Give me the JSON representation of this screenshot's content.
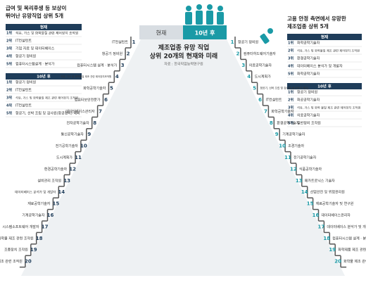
{
  "header": {
    "tab_now": "현재",
    "tab_future": "10년 후",
    "title_line1": "제조업종 유망 직업",
    "title_line2": "상위 20개의 현재와 미래",
    "source": "자료 : 한국직업능력연구원"
  },
  "left_box": {
    "title_line1": "급여 및 복리후생 등 보상이",
    "title_line2": "뛰어난 유망직업 상위 5개",
    "now": {
      "label": "현재",
      "items": [
        {
          "rank": "1위",
          "name": "석유, 가스 및 화학물질 관련 제어장치 조작원"
        },
        {
          "rank": "2위",
          "name": "IT컨설턴트"
        },
        {
          "rank": "3위",
          "name": "기업 자료 및 데이터베이스"
        },
        {
          "rank": "4위",
          "name": "항공기 정비원"
        },
        {
          "rank": "5위",
          "name": "컴퓨터시스템설계 · 분석가"
        }
      ]
    },
    "future": {
      "label": "10년 후",
      "items": [
        {
          "rank": "1위",
          "name": "항공기 정비원"
        },
        {
          "rank": "2위",
          "name": "IT컨설턴트"
        },
        {
          "rank": "3위",
          "name": "석유, 가스 및 화학물질 제조 관련 제어장치 조작원"
        },
        {
          "rank": "4위",
          "name": "IT컨설턴트"
        },
        {
          "rank": "5위",
          "name": "항공기, 선박 조립 및 검사원(항공정비) 제외"
        }
      ]
    }
  },
  "right_box": {
    "title_line1": "고용 안정 측면에서 유망한",
    "title_line2": "제조업종 상위 5개",
    "now": {
      "label": "현재",
      "items": [
        {
          "rank": "1위",
          "name": "화학공학기술자"
        },
        {
          "rank": "2위",
          "name": "석유, 가스 및 화학물질 제조 관련 제어장치 조작원"
        },
        {
          "rank": "3위",
          "name": "환경공학기술자"
        },
        {
          "rank": "4위",
          "name": "데이터베이스 분석가 및 개발자"
        },
        {
          "rank": "5위",
          "name": "화학공학기술자"
        }
      ]
    },
    "future": {
      "label": "10년 후",
      "items": [
        {
          "rank": "1위",
          "name": "항공기 정비원"
        },
        {
          "rank": "2위",
          "name": "화공공학기술자"
        },
        {
          "rank": "3위",
          "name": "석유, 가스 및 화학 물질 제조 관련 제어장치 조작원"
        },
        {
          "rank": "4위",
          "name": "의료공학기술자"
        },
        {
          "rank": "5위",
          "name": "일반정비 조작원"
        }
      ]
    }
  },
  "stairs_now": [
    {
      "rank": "1",
      "name": "IT컨설턴트"
    },
    {
      "rank": "2",
      "name": "항공기 정비원"
    },
    {
      "rank": "3",
      "name": "컴퓨터시스템 설계 · 분석가"
    },
    {
      "rank": "4",
      "name": "석유, 가스 및 화학물질 제조 관련 제어장치조작원"
    },
    {
      "rank": "5",
      "name": "화학공학기술자"
    },
    {
      "rank": "6",
      "name": "컴퓨터보안전문가"
    },
    {
      "rank": "7",
      "name": "데이터베이스관리자"
    },
    {
      "rank": "8",
      "name": "전자공학기술자"
    },
    {
      "rank": "9",
      "name": "통신공학기술자"
    },
    {
      "rank": "10",
      "name": "전기공학기술자"
    },
    {
      "rank": "11",
      "name": "도시계획가"
    },
    {
      "rank": "12",
      "name": "환경공학기술자"
    },
    {
      "rank": "13",
      "name": "설비관리 조작원"
    },
    {
      "rank": "14",
      "name": "데이터베이스 분석가 및 개발자"
    },
    {
      "rank": "15",
      "name": "재료공학기술자"
    },
    {
      "rank": "16",
      "name": "기계공학기술자"
    },
    {
      "rank": "17",
      "name": "시스템소프트웨어 개발자"
    },
    {
      "rank": "18",
      "name": "화학물 제조 관련 조작원"
    },
    {
      "rank": "19",
      "name": "조종장치 조작원"
    },
    {
      "rank": "20",
      "name": "화학제품 제조 관련 조작원"
    }
  ],
  "stairs_future": [
    {
      "rank": "1",
      "name": "항공기 정비원"
    },
    {
      "rank": "2",
      "name": "컴퓨터하드웨어기술자"
    },
    {
      "rank": "3",
      "name": "의료공학기술자"
    },
    {
      "rank": "4",
      "name": "도시계획가"
    },
    {
      "rank": "5",
      "name": "항공기, 선박 조립 및 검사원(항공정비 제외)"
    },
    {
      "rank": "6",
      "name": "IT컨설턴트"
    },
    {
      "rank": "7",
      "name": "화학공학기술자"
    },
    {
      "rank": "8",
      "name": "환경공학기술자"
    },
    {
      "rank": "9",
      "name": "기계공학기술자"
    },
    {
      "rank": "10",
      "name": "조경기술자"
    },
    {
      "rank": "11",
      "name": "전기공학기술자"
    },
    {
      "rank": "12",
      "name": "식품공학기술자"
    },
    {
      "rank": "13",
      "name": "메카트로닉스 기술자"
    },
    {
      "rank": "14",
      "name": "산업안전 및 위험관리원"
    },
    {
      "rank": "15",
      "name": "재료공학기술자 및 연구원"
    },
    {
      "rank": "16",
      "name": "데이터베이스관리자"
    },
    {
      "rank": "17",
      "name": "데이터베이스 분석가 및 개발자"
    },
    {
      "rank": "18",
      "name": "컴퓨터시스템 설계 · 분석가"
    },
    {
      "rank": "19",
      "name": "화학제품 제조 관련 조작원"
    },
    {
      "rank": "20",
      "name": "화학물 제조 관련 조작원"
    }
  ]
}
